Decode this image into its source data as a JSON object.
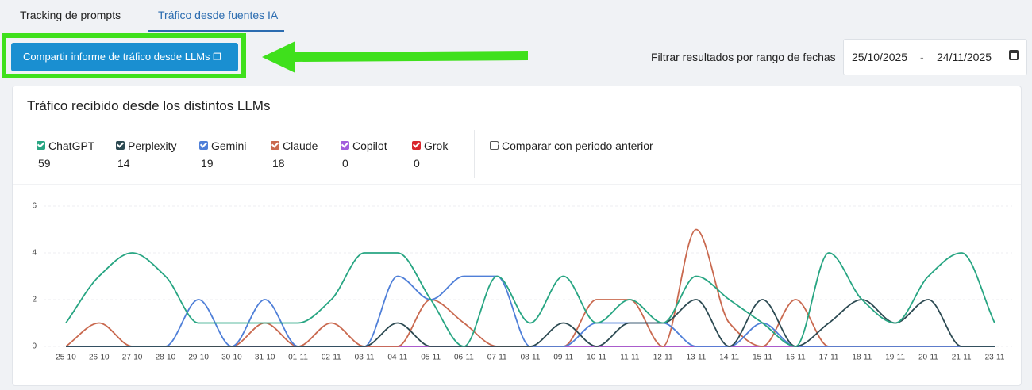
{
  "tabs": [
    "Tracking de prompts",
    "Tráfico desde fuentes IA"
  ],
  "share_button": "Compartir informe de tráfico desde LLMs",
  "date_filter": {
    "label": "Filtrar resultados por rango de fechas",
    "start": "25/10/2025",
    "separator": "-",
    "end": "24/11/2025"
  },
  "card_title": "Tráfico recibido desde los distintos LLMs",
  "compare_label": "Comparar con periodo anterior",
  "chart_data": {
    "type": "line",
    "categories": [
      "25-10",
      "26-10",
      "27-10",
      "28-10",
      "29-10",
      "30-10",
      "31-10",
      "01-11",
      "02-11",
      "03-11",
      "04-11",
      "05-11",
      "06-11",
      "07-11",
      "08-11",
      "09-11",
      "10-11",
      "11-11",
      "12-11",
      "13-11",
      "14-11",
      "15-11",
      "16-11",
      "17-11",
      "18-11",
      "19-11",
      "20-11",
      "21-11",
      "23-11"
    ],
    "series": [
      {
        "name": "ChatGPT",
        "total": 59,
        "color": "#27a582",
        "values": [
          1,
          3,
          4,
          3,
          1,
          1,
          1,
          1,
          2,
          4,
          4,
          2,
          0,
          3,
          1,
          3,
          1,
          2,
          1,
          3,
          2,
          1,
          0,
          4,
          2,
          1,
          3,
          4,
          1
        ]
      },
      {
        "name": "Perplexity",
        "total": 14,
        "color": "#2c4a52",
        "values": [
          0,
          0,
          0,
          0,
          0,
          0,
          0,
          0,
          0,
          0,
          1,
          0,
          0,
          0,
          0,
          1,
          0,
          1,
          1,
          2,
          0,
          2,
          0,
          1,
          2,
          1,
          2,
          0,
          0
        ]
      },
      {
        "name": "Gemini",
        "total": 19,
        "color": "#4f7fd8",
        "values": [
          0,
          0,
          0,
          0,
          2,
          0,
          2,
          0,
          0,
          0,
          3,
          2,
          3,
          3,
          0,
          0,
          1,
          1,
          1,
          0,
          0,
          1,
          0,
          0,
          0,
          0,
          0,
          0,
          0
        ]
      },
      {
        "name": "Claude",
        "total": 18,
        "color": "#c9694f",
        "values": [
          0,
          1,
          0,
          0,
          0,
          0,
          1,
          0,
          1,
          0,
          0,
          2,
          1,
          0,
          0,
          0,
          2,
          2,
          0,
          5,
          1,
          0,
          2,
          0,
          0,
          0,
          0,
          0,
          0
        ]
      },
      {
        "name": "Copilot",
        "total": 0,
        "color": "#a25ddc",
        "values": [
          0,
          0,
          0,
          0,
          0,
          0,
          0,
          0,
          0,
          0,
          0,
          0,
          0,
          0,
          0,
          0,
          0,
          0,
          0,
          0,
          0,
          0,
          0,
          0,
          0,
          0,
          0,
          0,
          0
        ]
      },
      {
        "name": "Grok",
        "total": 0,
        "color": "#d9262c",
        "values": [
          0,
          0,
          0,
          0,
          0,
          0,
          0,
          0,
          0,
          0,
          0,
          0,
          0,
          0,
          0,
          0,
          0,
          0,
          0,
          0,
          0,
          0,
          0,
          0,
          0,
          0,
          0,
          0,
          0
        ]
      }
    ],
    "ylim": [
      0,
      6
    ],
    "yticks": [
      0,
      2,
      4,
      6
    ],
    "grid": true
  }
}
